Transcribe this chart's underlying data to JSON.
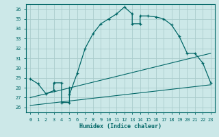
{
  "xlabel": "Humidex (Indice chaleur)",
  "bg_color": "#cce8e8",
  "grid_color": "#aacccc",
  "line_color": "#006666",
  "xlim": [
    -0.5,
    23.5
  ],
  "ylim": [
    25.5,
    36.5
  ],
  "xticks": [
    0,
    1,
    2,
    3,
    4,
    5,
    6,
    7,
    8,
    9,
    10,
    11,
    12,
    13,
    14,
    15,
    16,
    17,
    18,
    19,
    20,
    21,
    22,
    23
  ],
  "yticks": [
    26,
    27,
    28,
    29,
    30,
    31,
    32,
    33,
    34,
    35,
    36
  ],
  "curve1_x": [
    0,
    1,
    2,
    3,
    3,
    4,
    4,
    5,
    5,
    5,
    6,
    7,
    8,
    9,
    10,
    11,
    12,
    13,
    13,
    14,
    14,
    15,
    16,
    17,
    18,
    19,
    20,
    21,
    22,
    23
  ],
  "curve1_y": [
    28.9,
    28.4,
    27.4,
    27.7,
    28.5,
    28.5,
    26.5,
    26.5,
    28.0,
    27.3,
    29.5,
    32.0,
    33.5,
    34.5,
    35.0,
    35.5,
    36.2,
    35.5,
    34.5,
    34.5,
    35.3,
    35.3,
    35.2,
    35.0,
    34.4,
    33.2,
    31.5,
    31.5,
    30.5,
    28.5
  ],
  "line1_x": [
    0,
    23
  ],
  "line1_y": [
    27.0,
    31.5
  ],
  "line2_x": [
    0,
    23
  ],
  "line2_y": [
    26.2,
    28.3
  ]
}
